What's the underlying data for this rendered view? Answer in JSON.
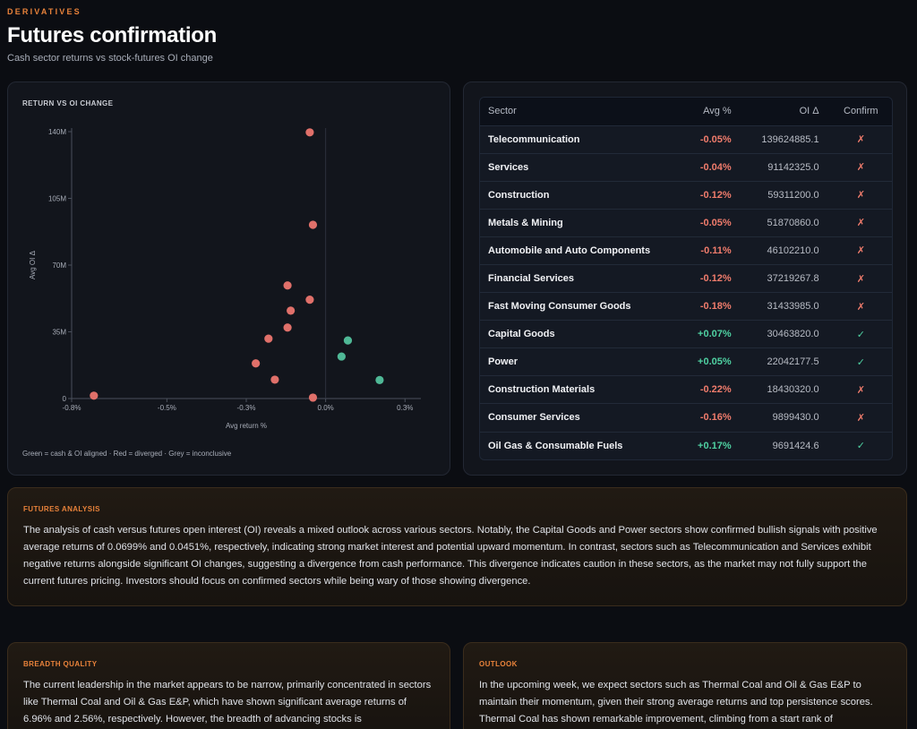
{
  "header": {
    "eyebrow": "DERIVATIVES",
    "title": "Futures confirmation",
    "subtitle": "Cash sector returns vs stock-futures OI change"
  },
  "chart": {
    "title": "RETURN VS OI CHANGE",
    "legend_note": "Green = cash & OI aligned · Red = diverged · Grey = inconclusive"
  },
  "chart_data": {
    "type": "scatter",
    "xlabel": "Avg return %",
    "ylabel": "Avg OI Δ",
    "xlim": [
      -0.8,
      0.3
    ],
    "ylim": [
      0,
      140000000
    ],
    "x_ticks": [
      "-0.8%",
      "-0.5%",
      "-0.3%",
      "0.0%",
      "0.3%"
    ],
    "x_tick_values": [
      -0.8,
      -0.5,
      -0.25,
      0.0,
      0.25
    ],
    "y_ticks": [
      "0",
      "35M",
      "70M",
      "105M",
      "140M"
    ],
    "y_tick_values": [
      0,
      35000000,
      70000000,
      105000000,
      140000000
    ],
    "colors": {
      "aligned": "#4fb896",
      "diverged": "#e0706a",
      "inconclusive": "#8a8f99"
    },
    "points": [
      {
        "x": -0.05,
        "y": 139624885.1,
        "status": "diverged"
      },
      {
        "x": -0.04,
        "y": 91142325.0,
        "status": "diverged"
      },
      {
        "x": -0.12,
        "y": 59311200.0,
        "status": "diverged"
      },
      {
        "x": -0.05,
        "y": 51870860.0,
        "status": "diverged"
      },
      {
        "x": -0.11,
        "y": 46102210.0,
        "status": "diverged"
      },
      {
        "x": -0.12,
        "y": 37219267.8,
        "status": "diverged"
      },
      {
        "x": -0.18,
        "y": 31433985.0,
        "status": "diverged"
      },
      {
        "x": 0.07,
        "y": 30463820.0,
        "status": "aligned"
      },
      {
        "x": 0.05,
        "y": 22042177.5,
        "status": "aligned"
      },
      {
        "x": -0.22,
        "y": 18430320.0,
        "status": "diverged"
      },
      {
        "x": -0.16,
        "y": 9899430.0,
        "status": "diverged"
      },
      {
        "x": 0.17,
        "y": 9691424.6,
        "status": "aligned"
      },
      {
        "x": -0.73,
        "y": 1500000,
        "status": "diverged"
      },
      {
        "x": -0.04,
        "y": 500000,
        "status": "diverged"
      }
    ]
  },
  "table": {
    "headers": {
      "sector": "Sector",
      "avg": "Avg %",
      "oi": "OI Δ",
      "confirm": "Confirm"
    },
    "rows": [
      {
        "sector": "Telecommunication",
        "avg": "-0.05%",
        "oi": "139624885.1",
        "confirm": "✗",
        "sign": "neg"
      },
      {
        "sector": "Services",
        "avg": "-0.04%",
        "oi": "91142325.0",
        "confirm": "✗",
        "sign": "neg"
      },
      {
        "sector": "Construction",
        "avg": "-0.12%",
        "oi": "59311200.0",
        "confirm": "✗",
        "sign": "neg"
      },
      {
        "sector": "Metals & Mining",
        "avg": "-0.05%",
        "oi": "51870860.0",
        "confirm": "✗",
        "sign": "neg"
      },
      {
        "sector": "Automobile and Auto Components",
        "avg": "-0.11%",
        "oi": "46102210.0",
        "confirm": "✗",
        "sign": "neg"
      },
      {
        "sector": "Financial Services",
        "avg": "-0.12%",
        "oi": "37219267.8",
        "confirm": "✗",
        "sign": "neg"
      },
      {
        "sector": "Fast Moving Consumer Goods",
        "avg": "-0.18%",
        "oi": "31433985.0",
        "confirm": "✗",
        "sign": "neg"
      },
      {
        "sector": "Capital Goods",
        "avg": "+0.07%",
        "oi": "30463820.0",
        "confirm": "✓",
        "sign": "pos"
      },
      {
        "sector": "Power",
        "avg": "+0.05%",
        "oi": "22042177.5",
        "confirm": "✓",
        "sign": "pos"
      },
      {
        "sector": "Construction Materials",
        "avg": "-0.22%",
        "oi": "18430320.0",
        "confirm": "✗",
        "sign": "neg"
      },
      {
        "sector": "Consumer Services",
        "avg": "-0.16%",
        "oi": "9899430.0",
        "confirm": "✗",
        "sign": "neg"
      },
      {
        "sector": "Oil Gas & Consumable Fuels",
        "avg": "+0.17%",
        "oi": "9691424.6",
        "confirm": "✓",
        "sign": "pos"
      }
    ]
  },
  "analysis": {
    "title": "FUTURES ANALYSIS",
    "body": "The analysis of cash versus futures open interest (OI) reveals a mixed outlook across various sectors. Notably, the Capital Goods and Power sectors show confirmed bullish signals with positive average returns of 0.0699% and 0.0451%, respectively, indicating strong market interest and potential upward momentum. In contrast, sectors such as Telecommunication and Services exhibit negative returns alongside significant OI changes, suggesting a divergence from cash performance. This divergence indicates caution in these sectors, as the market may not fully support the current futures pricing. Investors should focus on confirmed sectors while being wary of those showing divergence."
  },
  "breadth": {
    "title": "BREADTH QUALITY",
    "body": "The current leadership in the market appears to be narrow, primarily concentrated in sectors like Thermal Coal and Oil & Gas E&P, which have shown significant average returns of 6.96% and 2.56%, respectively. However, the breadth of advancing stocks is"
  },
  "outlook": {
    "title": "OUTLOOK",
    "body": "In the upcoming week, we expect sectors such as Thermal Coal and Oil & Gas E&P to maintain their momentum, given their strong average returns and top persistence scores. Thermal Coal has shown remarkable improvement, climbing from a start rank of"
  }
}
